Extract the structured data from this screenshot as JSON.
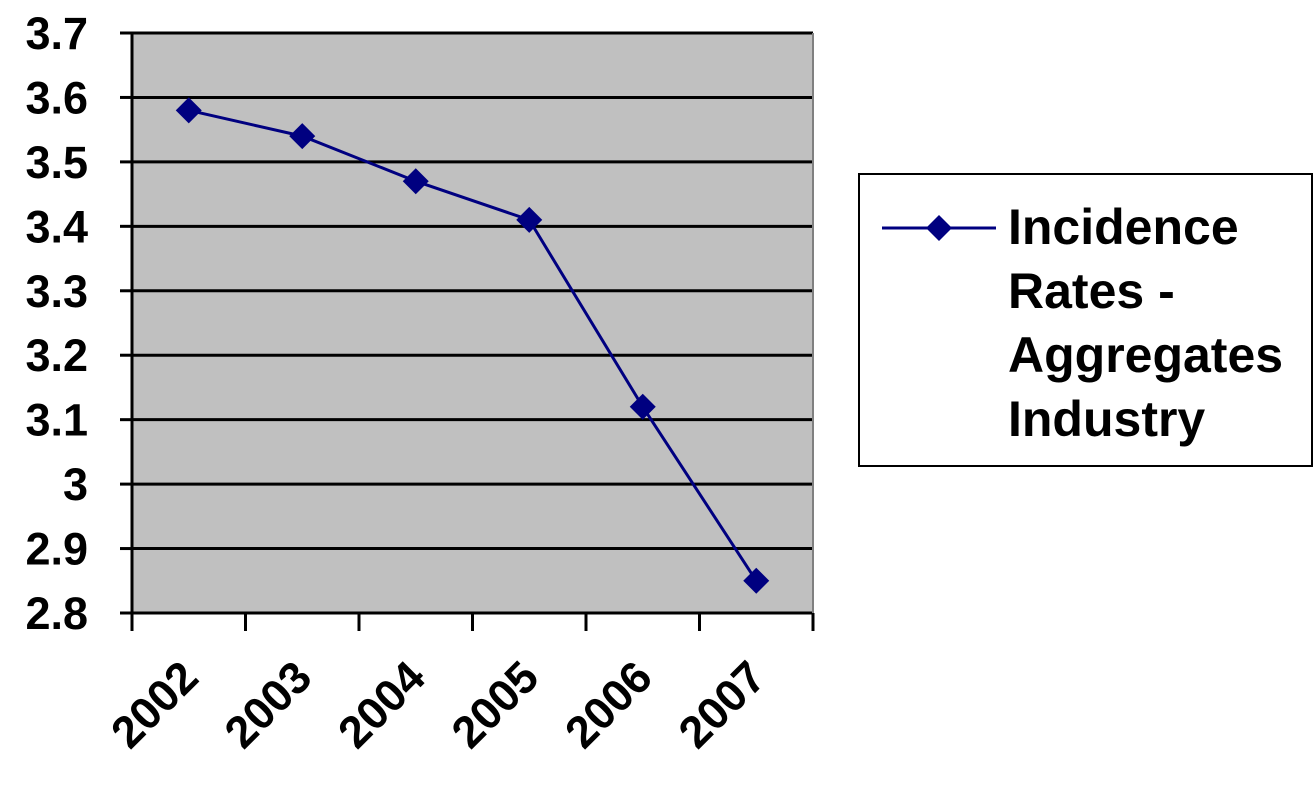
{
  "chart_data": {
    "type": "line",
    "title": "",
    "xlabel": "",
    "ylabel": "",
    "categories": [
      "2002",
      "2003",
      "2004",
      "2005",
      "2006",
      "2007"
    ],
    "series": [
      {
        "name": "Incidence Rates - Aggregates Industry",
        "values": [
          3.58,
          3.54,
          3.47,
          3.41,
          3.12,
          2.85
        ],
        "color": "#000080",
        "marker": "diamond"
      }
    ],
    "ylim": [
      2.8,
      3.7
    ],
    "yticks": [
      "2.8",
      "2.9",
      "3",
      "3.1",
      "3.2",
      "3.3",
      "3.4",
      "3.5",
      "3.6",
      "3.7"
    ],
    "grid": true,
    "plot_background": "#c0c0c0",
    "legend_position": "right"
  }
}
